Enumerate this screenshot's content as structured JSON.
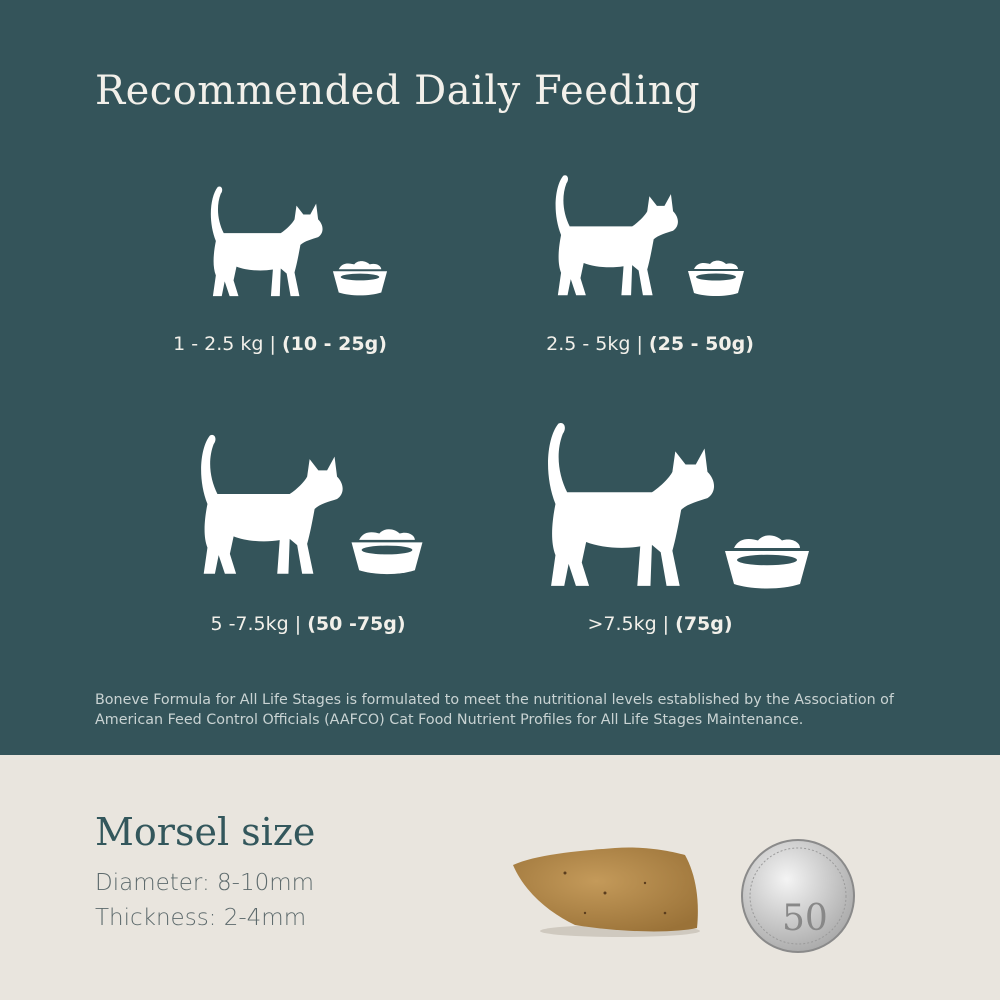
{
  "feeding": {
    "title": "Recommended Daily Feeding",
    "items": [
      {
        "weight": "1 - 2.5 kg |",
        "amount": "(10 - 25g)"
      },
      {
        "weight": "2.5 - 5kg |",
        "amount": "(25 - 50g)"
      },
      {
        "weight": "5 -7.5kg |",
        "amount": "(50 -75g)"
      },
      {
        "weight": ">7.5kg |",
        "amount": "(75g)"
      }
    ],
    "note": "Boneve Formula for All Life Stages is formulated to meet the nutritional levels established by the Association of American Feed Control Officials (AAFCO) Cat Food Nutrient Profiles for All Life Stages Maintenance."
  },
  "morsel": {
    "title": "Morsel size",
    "diameter": "Diameter: 8-10mm",
    "thickness": "Thickness: 2-4mm",
    "coin_value": "50"
  },
  "colors": {
    "panel": "#34545a",
    "bottom": "#e9e5de",
    "heading_dark": "#33575c"
  }
}
